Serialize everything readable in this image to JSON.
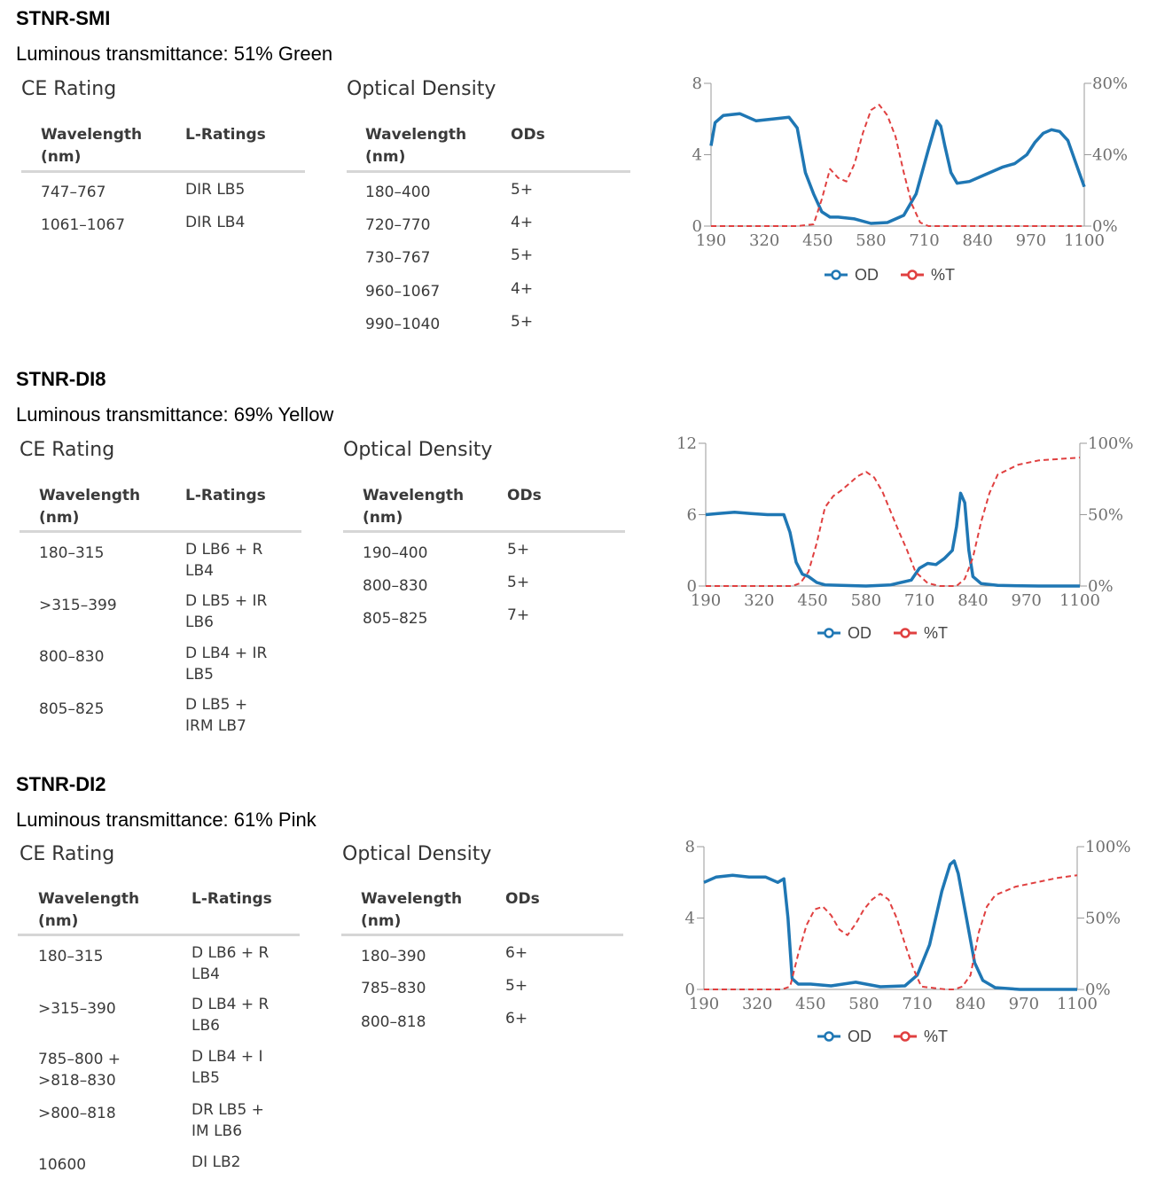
{
  "products": [
    {
      "title": "STNR-SMI",
      "lum": "Luminous transmittance: 51% Green",
      "ce_heading": "CE Rating",
      "od_heading": "Optical Density",
      "ce_headers": [
        "Wavelength (nm)",
        "L-Ratings"
      ],
      "od_headers": [
        "Wavelength (nm)",
        "ODs"
      ],
      "ce_rows": [
        {
          "w": "747–767",
          "r": "DIR LB5"
        },
        {
          "w": "1061–1067",
          "r": "DIR LB4"
        }
      ],
      "od_rows": [
        {
          "w": "180–400",
          "o": "5+"
        },
        {
          "w": "720–770",
          "o": "4+"
        },
        {
          "w": "730–767",
          "o": "5+"
        },
        {
          "w": "960–1067",
          "o": "4+"
        },
        {
          "w": "990–1040",
          "o": "5+"
        }
      ]
    },
    {
      "title": "STNR-DI8",
      "lum": "Luminous transmittance: 69% Yellow",
      "ce_heading": "CE Rating",
      "od_heading": "Optical Density",
      "ce_headers": [
        "Wavelength (nm)",
        "L-Ratings"
      ],
      "od_headers": [
        "Wavelength (nm)",
        "ODs"
      ],
      "ce_rows": [
        {
          "w": "180–315",
          "r": "D LB6 + R LB4"
        },
        {
          "w": ">315–399",
          "r": "D LB5 + IR LB6"
        },
        {
          "w": "800–830",
          "r": "D LB4 + IR LB5"
        },
        {
          "w": "805–825",
          "r": "D LB5 + IRM LB7"
        }
      ],
      "od_rows": [
        {
          "w": "190–400",
          "o": "5+"
        },
        {
          "w": "800–830",
          "o": "5+"
        },
        {
          "w": "805–825",
          "o": "7+"
        }
      ]
    },
    {
      "title": "STNR-DI2",
      "lum": "Luminous transmittance: 61% Pink",
      "ce_heading": "CE Rating",
      "od_heading": "Optical Density",
      "ce_headers": [
        "Wavelength (nm)",
        "L-Ratings"
      ],
      "od_headers": [
        "Wavelength (nm)",
        "ODs"
      ],
      "ce_rows": [
        {
          "w": "180–315",
          "r": "D LB6 + R LB4"
        },
        {
          "w": ">315–390",
          "r": "D LB4 + R LB6"
        },
        {
          "w": "785–800 + >818–830",
          "r": "D LB4 + I LB5"
        },
        {
          "w": ">800–818",
          "r": "DR LB5 + IM LB6"
        },
        {
          "w": "10600",
          "r": "DI LB2"
        }
      ],
      "od_rows": [
        {
          "w": "180–390",
          "o": "6+"
        },
        {
          "w": "785–830",
          "o": "5+"
        },
        {
          "w": "800–818",
          "o": "6+"
        }
      ]
    }
  ],
  "chart_data": [
    {
      "type": "line",
      "x_ticks": [
        "190",
        "320",
        "450",
        "580",
        "710",
        "840",
        "970",
        "1100"
      ],
      "xlim": [
        190,
        1100
      ],
      "y_left_ticks": [
        "0",
        "4",
        "8"
      ],
      "y_left_lim": [
        0,
        8
      ],
      "y_right_ticks": [
        "0%",
        "40%",
        "80%"
      ],
      "y_right_lim": [
        0,
        80
      ],
      "legend": [
        "OD",
        "%T"
      ],
      "colors": {
        "OD": "#1f77b4",
        "%T": "#e04040"
      },
      "series": [
        {
          "name": "OD",
          "axis": "left",
          "x": [
            190,
            200,
            220,
            260,
            300,
            340,
            380,
            400,
            420,
            440,
            460,
            480,
            500,
            540,
            580,
            620,
            660,
            690,
            720,
            740,
            750,
            760,
            775,
            790,
            820,
            860,
            900,
            930,
            960,
            980,
            1000,
            1020,
            1040,
            1060,
            1080,
            1100
          ],
          "y": [
            4.5,
            5.8,
            6.2,
            6.3,
            5.9,
            6.0,
            6.1,
            5.5,
            3.0,
            1.8,
            0.8,
            0.5,
            0.5,
            0.4,
            0.15,
            0.2,
            0.6,
            1.8,
            4.3,
            5.9,
            5.6,
            4.5,
            3.0,
            2.4,
            2.5,
            2.9,
            3.3,
            3.5,
            4.0,
            4.7,
            5.2,
            5.4,
            5.3,
            4.8,
            3.5,
            2.2
          ]
        },
        {
          "name": "%T",
          "axis": "right",
          "x": [
            190,
            300,
            400,
            440,
            460,
            480,
            500,
            520,
            540,
            560,
            580,
            600,
            620,
            640,
            660,
            680,
            700,
            720,
            750,
            800,
            900,
            1000,
            1100
          ],
          "y": [
            0,
            0,
            0,
            1,
            15,
            32,
            27,
            25,
            35,
            52,
            65,
            68,
            62,
            50,
            30,
            12,
            2,
            0,
            0,
            0,
            0,
            0,
            0
          ]
        }
      ]
    },
    {
      "type": "line",
      "x_ticks": [
        "190",
        "320",
        "450",
        "580",
        "710",
        "840",
        "970",
        "1100"
      ],
      "xlim": [
        190,
        1100
      ],
      "y_left_ticks": [
        "0",
        "6",
        "12"
      ],
      "y_left_lim": [
        0,
        12
      ],
      "y_right_ticks": [
        "0%",
        "50%",
        "100%"
      ],
      "y_right_lim": [
        0,
        100
      ],
      "legend": [
        "OD",
        "%T"
      ],
      "colors": {
        "OD": "#1f77b4",
        "%T": "#e04040"
      },
      "series": [
        {
          "name": "OD",
          "axis": "left",
          "x": [
            190,
            220,
            260,
            300,
            340,
            380,
            395,
            410,
            425,
            440,
            460,
            480,
            520,
            580,
            640,
            690,
            710,
            730,
            750,
            770,
            790,
            800,
            810,
            820,
            830,
            840,
            860,
            900,
            1000,
            1100
          ],
          "y": [
            6.0,
            6.1,
            6.2,
            6.1,
            6.0,
            6.0,
            4.5,
            2.0,
            1.0,
            0.8,
            0.3,
            0.1,
            0.05,
            0.0,
            0.1,
            0.5,
            1.5,
            1.9,
            1.8,
            2.3,
            3.0,
            5.0,
            7.8,
            7.0,
            3.0,
            0.8,
            0.2,
            0.05,
            0.0,
            0.0
          ]
        },
        {
          "name": "%T",
          "axis": "right",
          "x": [
            190,
            300,
            400,
            420,
            440,
            460,
            480,
            500,
            520,
            540,
            560,
            580,
            600,
            620,
            640,
            660,
            680,
            700,
            730,
            760,
            800,
            820,
            840,
            860,
            880,
            900,
            950,
            1000,
            1050,
            1100
          ],
          "y": [
            0,
            0,
            0,
            2,
            10,
            30,
            55,
            63,
            67,
            72,
            77,
            80,
            76,
            66,
            52,
            38,
            25,
            10,
            2,
            0,
            0,
            5,
            20,
            45,
            65,
            78,
            85,
            88,
            89,
            90
          ]
        }
      ]
    },
    {
      "type": "line",
      "x_ticks": [
        "190",
        "320",
        "450",
        "580",
        "710",
        "840",
        "970",
        "1100"
      ],
      "xlim": [
        190,
        1100
      ],
      "y_left_ticks": [
        "0",
        "4",
        "8"
      ],
      "y_left_lim": [
        0,
        8
      ],
      "y_right_ticks": [
        "0%",
        "50%",
        "100%"
      ],
      "y_right_lim": [
        0,
        100
      ],
      "legend": [
        "OD",
        "%T"
      ],
      "colors": {
        "OD": "#1f77b4",
        "%T": "#e04040"
      },
      "series": [
        {
          "name": "OD",
          "axis": "left",
          "x": [
            190,
            220,
            260,
            300,
            340,
            370,
            385,
            395,
            405,
            420,
            450,
            500,
            560,
            620,
            680,
            710,
            740,
            770,
            790,
            800,
            810,
            830,
            850,
            870,
            900,
            960,
            1000,
            1100
          ],
          "y": [
            6.0,
            6.3,
            6.4,
            6.3,
            6.3,
            6.0,
            6.2,
            4.0,
            0.6,
            0.3,
            0.3,
            0.2,
            0.4,
            0.15,
            0.2,
            0.8,
            2.5,
            5.5,
            7.0,
            7.2,
            6.5,
            4.0,
            1.5,
            0.5,
            0.1,
            0.0,
            0.0,
            0.0
          ]
        },
        {
          "name": "%T",
          "axis": "right",
          "x": [
            190,
            300,
            380,
            400,
            420,
            440,
            460,
            480,
            500,
            520,
            540,
            560,
            580,
            600,
            620,
            640,
            660,
            680,
            700,
            720,
            780,
            800,
            820,
            840,
            860,
            880,
            900,
            950,
            1000,
            1050,
            1100
          ],
          "y": [
            0,
            0,
            0,
            2,
            25,
            45,
            56,
            58,
            52,
            42,
            38,
            46,
            56,
            63,
            67,
            63,
            50,
            32,
            15,
            2,
            0,
            0,
            2,
            10,
            40,
            58,
            66,
            72,
            75,
            78,
            80
          ]
        }
      ]
    }
  ]
}
